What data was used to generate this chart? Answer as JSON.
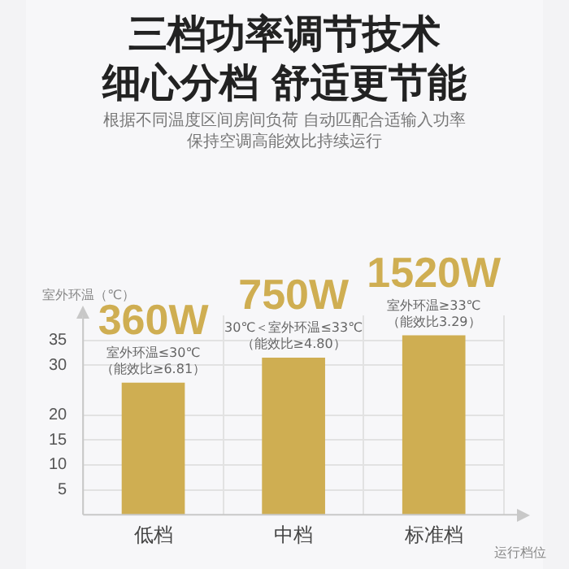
{
  "chart_data": {
    "type": "bar",
    "title": "三档功率调节技术",
    "subtitle": "细心分档 舒适更节能",
    "ylabel": "室外环温（℃）",
    "xlabel": "运行档位",
    "categories": [
      "低档",
      "中档",
      "标准档"
    ],
    "values": [
      26.5,
      31.5,
      36
    ],
    "color": "#cfae52",
    "ylim": [
      0,
      40
    ],
    "yticks": [
      5,
      10,
      15,
      20,
      30,
      35
    ],
    "grid": true,
    "annotations": [
      "根据不同温度区间房间负荷 自动匹配合适输入功率保持空调高能效比持续运行",
      {
        "text": "360W",
        "x": "低档",
        "y": 26.5
      },
      {
        "text": "室外环温≤30℃",
        "x": "低档",
        "y": 26.5
      },
      {
        "text": "（能效比≥6.81）",
        "x": "低档",
        "y": 26.5
      },
      {
        "text": "750W",
        "x": "中档",
        "y": 31.5
      },
      {
        "text": "30℃＜室外环温≤33℃",
        "x": "中档",
        "y": 31.5
      },
      {
        "text": "（能效比≥4.80）",
        "x": "中档",
        "y": 31.5
      },
      {
        "text": "1520W",
        "x": "标准档",
        "y": 36
      },
      {
        "text": "室外环温≥33℃",
        "x": "标准档",
        "y": 36
      },
      {
        "text": "（能效比3.29）",
        "x": "标准档",
        "y": 36
      }
    ]
  }
}
